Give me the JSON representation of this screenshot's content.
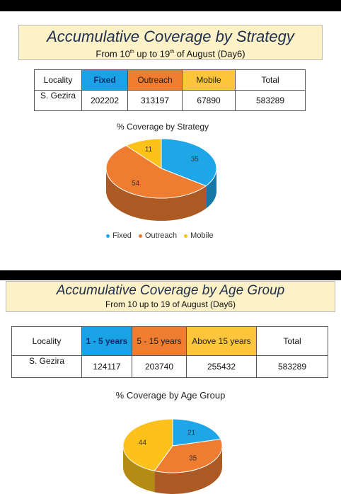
{
  "section1": {
    "title": "Accumulative Coverage by Strategy",
    "subtitle": "From 10th up to 19th of August (Day6)",
    "table": {
      "headers": [
        "Locality",
        "Fixed",
        "Outreach",
        "Mobile",
        "Total"
      ],
      "row": [
        "S. Gezira",
        "202202",
        "313197",
        "67890",
        "583289"
      ]
    }
  },
  "section2": {
    "title": "Accumulative Coverage by Age Group",
    "subtitle": "From 10 up to 19 of August (Day6)",
    "table": {
      "headers": [
        "Locality",
        "1 - 5 years",
        "5 - 15 years",
        "Above 15 years",
        "Total"
      ],
      "row": [
        "S. Gezira",
        "124117",
        "203740",
        "255432",
        "583289"
      ]
    }
  },
  "colors": {
    "blue": "#1ea7e8",
    "orange": "#ee7d31",
    "yellow": "#fcc21b"
  },
  "chart_data": [
    {
      "type": "pie",
      "title": "% Coverage by Strategy",
      "categories": [
        "Fixed",
        "Outreach",
        "Mobile"
      ],
      "values": [
        35,
        54,
        11
      ],
      "legend": "bottom"
    },
    {
      "type": "pie",
      "title": "% Coverage by Age Group",
      "categories": [
        "1 - 5 years",
        "5 - 15 years",
        "Above 15 years"
      ],
      "values": [
        21,
        35,
        44
      ]
    }
  ]
}
